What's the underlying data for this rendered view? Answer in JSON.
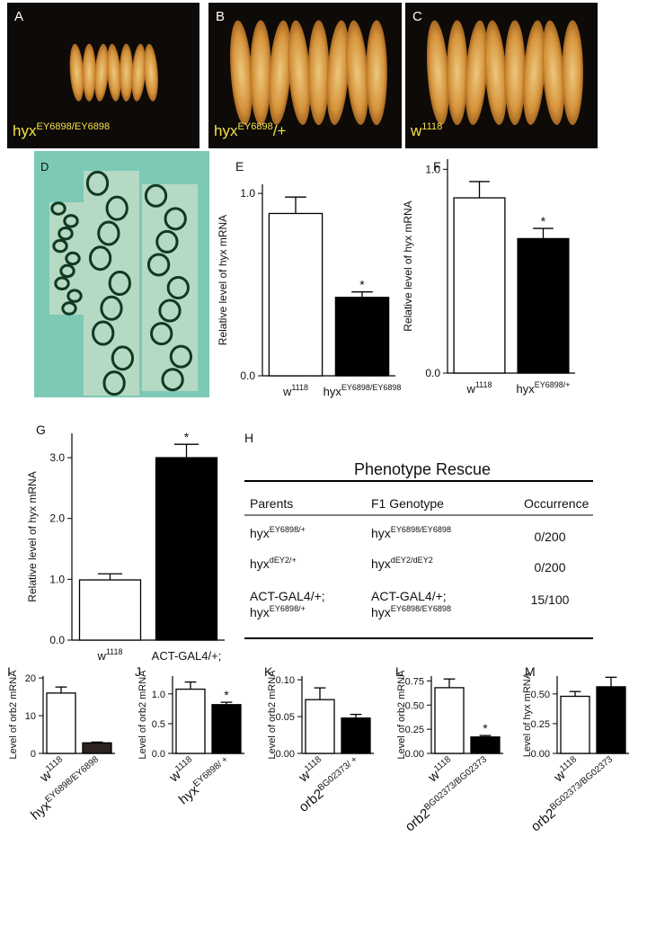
{
  "images": [
    {
      "label": "A",
      "caption": [
        {
          "text": "hyx"
        },
        {
          "text": "EY6898/EY6898",
          "sup": true
        }
      ]
    },
    {
      "label": "B",
      "caption": [
        {
          "text": "hyx"
        },
        {
          "text": "EY6898",
          "sup": true
        },
        {
          "text": "/+"
        }
      ]
    },
    {
      "label": "C",
      "caption": [
        {
          "text": "w"
        },
        {
          "text": "1118",
          "sup": true
        }
      ]
    }
  ],
  "panel_d": {
    "label": "D"
  },
  "chart_data": [
    {
      "type": "bar",
      "label": "E",
      "ylabel": "Relative level of hyx mRNA",
      "categories": [
        "w",
        "hyx"
      ],
      "category_superscripts": [
        "1118",
        "EY6898/EY6898"
      ],
      "values": [
        0.89,
        0.43
      ],
      "errors": [
        0.09,
        0.03
      ],
      "colors": [
        "#ffffff",
        "#000000"
      ],
      "ylim": [
        0,
        1.05
      ],
      "yticks": [
        {
          "value": 0,
          "label": "0.0"
        },
        {
          "value": 1,
          "label": "1.0"
        }
      ],
      "annotations": [
        {
          "index": 1,
          "text": "*"
        }
      ]
    },
    {
      "type": "bar",
      "label": "F",
      "ylabel": "Relative level of hyx mRNA",
      "categories": [
        "w",
        "hyx"
      ],
      "category_superscripts": [
        "1118",
        "EY6898/+"
      ],
      "values": [
        0.86,
        0.66
      ],
      "errors": [
        0.08,
        0.05
      ],
      "colors": [
        "#ffffff",
        "#000000"
      ],
      "ylim": [
        0,
        1.05
      ],
      "yticks": [
        {
          "value": 0,
          "label": "0.0"
        },
        {
          "value": 1,
          "label": "1.0"
        }
      ],
      "annotations": [
        {
          "index": 1,
          "text": "*"
        }
      ]
    },
    {
      "type": "bar",
      "label": "G",
      "ylabel": "Relative level of hyx mRNA",
      "categories": [
        "w",
        "ACT-GAL4/+;"
      ],
      "category_superscripts": [
        "1118",
        null
      ],
      "values": [
        0.99,
        3.0
      ],
      "errors": [
        0.1,
        0.22
      ],
      "colors": [
        "#ffffff",
        "#000000"
      ],
      "ylim": [
        0,
        3.4
      ],
      "yticks": [
        {
          "value": 0,
          "label": "0.0"
        },
        {
          "value": 1,
          "label": "1.0"
        },
        {
          "value": 2,
          "label": "2.0"
        },
        {
          "value": 3,
          "label": "3.0"
        }
      ],
      "annotations": [
        {
          "index": 1,
          "text": "*"
        }
      ]
    },
    {
      "type": "bar",
      "label": "I",
      "ylabel": "Level of orb2 mRNA",
      "categories": [
        "w",
        "hyx"
      ],
      "category_superscripts": [
        "1118",
        "EY6898/EY6898"
      ],
      "values": [
        16,
        2.8
      ],
      "errors": [
        1.6,
        0.2
      ],
      "colors": [
        "#ffffff",
        "#2b2222"
      ],
      "ylim": [
        0,
        20.5
      ],
      "yticks": [
        0,
        10,
        20
      ],
      "annotations": []
    },
    {
      "type": "bar",
      "label": "J",
      "ylabel": "Level of orb2 mRNA",
      "categories": [
        "w",
        "hyx"
      ],
      "category_superscripts": [
        "1118",
        "EY6898/ +"
      ],
      "values": [
        1.08,
        0.82
      ],
      "errors": [
        0.12,
        0.04
      ],
      "colors": [
        "#ffffff",
        "#000000"
      ],
      "ylim": [
        0,
        1.3
      ],
      "yticks": [
        {
          "value": 0,
          "label": "0.0"
        },
        {
          "value": 0.5,
          "label": "0.5"
        },
        {
          "value": 1,
          "label": "1.0"
        }
      ],
      "annotations": [
        {
          "index": 1,
          "text": "*"
        }
      ]
    },
    {
      "type": "bar",
      "label": "K",
      "ylabel": "Level of orb2 mRNA",
      "categories": [
        "w",
        "orb2"
      ],
      "category_superscripts": [
        "1118",
        "BG02373/ +"
      ],
      "values": [
        0.073,
        0.048
      ],
      "errors": [
        0.016,
        0.005
      ],
      "colors": [
        "#ffffff",
        "#000000"
      ],
      "ylim": [
        0,
        0.105
      ],
      "yticks": [
        {
          "value": 0,
          "label": "0.00"
        },
        {
          "value": 0.05,
          "label": "0.05"
        },
        {
          "value": 0.1,
          "label": "0.10"
        }
      ],
      "annotations": []
    },
    {
      "type": "bar",
      "label": "L",
      "ylabel": "Level of orb2 mRNA",
      "categories": [
        "w",
        "orb2"
      ],
      "category_superscripts": [
        "1118",
        "BG02373/BG02373"
      ],
      "values": [
        0.68,
        0.17
      ],
      "errors": [
        0.09,
        0.015
      ],
      "colors": [
        "#ffffff",
        "#000000"
      ],
      "ylim": [
        0,
        0.8
      ],
      "yticks": [
        {
          "value": 0,
          "label": "0.00"
        },
        {
          "value": 0.25,
          "label": "0.25"
        },
        {
          "value": 0.5,
          "label": "0.50"
        },
        {
          "value": 0.75,
          "label": "0.75"
        }
      ],
      "annotations": [
        {
          "index": 1,
          "text": "*"
        }
      ]
    },
    {
      "type": "bar",
      "label": "M",
      "ylabel": "Level of hyx mRNA",
      "categories": [
        "w",
        "orb2"
      ],
      "category_superscripts": [
        "1118",
        "BG02373/BG02373"
      ],
      "values": [
        0.48,
        0.56
      ],
      "errors": [
        0.04,
        0.08
      ],
      "colors": [
        "#ffffff",
        "#000000"
      ],
      "ylim": [
        0,
        0.65
      ],
      "yticks": [
        {
          "value": 0,
          "label": "0.00"
        },
        {
          "value": 0.25,
          "label": "0.25"
        },
        {
          "value": 0.5,
          "label": "0.50"
        }
      ],
      "annotations": []
    }
  ],
  "table": {
    "label": "H",
    "title": "Phenotype Rescue",
    "header": [
      "Parents",
      "F1 Genotype",
      "Occurrence"
    ],
    "rows": [
      [
        [
          [
            {
              "text": "hyx"
            },
            {
              "text": "EY6898/+",
              "sup": true
            }
          ]
        ],
        [
          [
            {
              "text": "hyx"
            },
            {
              "text": "EY6898/EY6898",
              "sup": true
            }
          ]
        ],
        [
          [
            {
              "text": "0/200"
            }
          ]
        ]
      ],
      [
        [
          [
            {
              "text": "hyx"
            },
            {
              "text": "dEY2/+",
              "sup": true
            }
          ]
        ],
        [
          [
            {
              "text": "hyx"
            },
            {
              "text": "dEY2/dEY2",
              "sup": true
            }
          ]
        ],
        [
          [
            {
              "text": "0/200"
            }
          ]
        ]
      ],
      [
        [
          [
            {
              "text": "ACT-GAL4/+;"
            }
          ],
          [
            {
              "text": "hyx"
            },
            {
              "text": "EY6898/+",
              "sup": true
            }
          ]
        ],
        [
          [
            {
              "text": "ACT-GAL4/+;"
            }
          ],
          [
            {
              "text": "hyx"
            },
            {
              "text": "EY6898/EY6898",
              "sup": true
            }
          ]
        ],
        [
          [
            {
              "text": "15/100"
            }
          ]
        ]
      ]
    ]
  }
}
